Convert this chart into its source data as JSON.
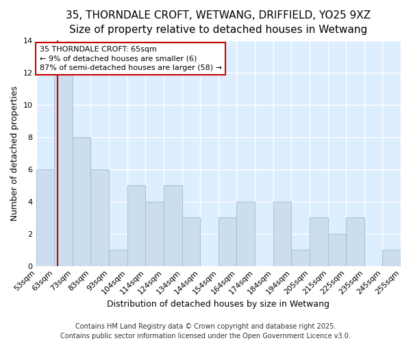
{
  "title": "35, THORNDALE CROFT, WETWANG, DRIFFIELD, YO25 9XZ",
  "subtitle": "Size of property relative to detached houses in Wetwang",
  "xlabel": "Distribution of detached houses by size in Wetwang",
  "ylabel": "Number of detached properties",
  "categories": [
    "53sqm",
    "63sqm",
    "73sqm",
    "83sqm",
    "93sqm",
    "104sqm",
    "114sqm",
    "124sqm",
    "134sqm",
    "144sqm",
    "154sqm",
    "164sqm",
    "174sqm",
    "184sqm",
    "194sqm",
    "205sqm",
    "215sqm",
    "225sqm",
    "235sqm",
    "245sqm",
    "255sqm"
  ],
  "bar_values": [
    6,
    12,
    8,
    6,
    1,
    5,
    4,
    5,
    3,
    0,
    3,
    4,
    0,
    4,
    1,
    3,
    2,
    3,
    0,
    1,
    0
  ],
  "bar_color": "#ccdded",
  "bar_edge_color": "#a8c4da",
  "ylim": [
    0,
    14
  ],
  "yticks": [
    0,
    2,
    4,
    6,
    8,
    10,
    12,
    14
  ],
  "red_line_color": "#cc0000",
  "annotation_title": "35 THORNDALE CROFT: 65sqm",
  "annotation_line1": "← 9% of detached houses are smaller (6)",
  "annotation_line2": "87% of semi-detached houses are larger (58) →",
  "annotation_box_color": "#cc0000",
  "footer_line1": "Contains HM Land Registry data © Crown copyright and database right 2025.",
  "footer_line2": "Contains public sector information licensed under the Open Government Licence v3.0.",
  "fig_bg_color": "#ffffff",
  "plot_bg_color": "#ddeeff",
  "title_fontsize": 11,
  "subtitle_fontsize": 10,
  "axis_label_fontsize": 9,
  "tick_fontsize": 8,
  "annotation_fontsize": 8,
  "footer_fontsize": 7
}
